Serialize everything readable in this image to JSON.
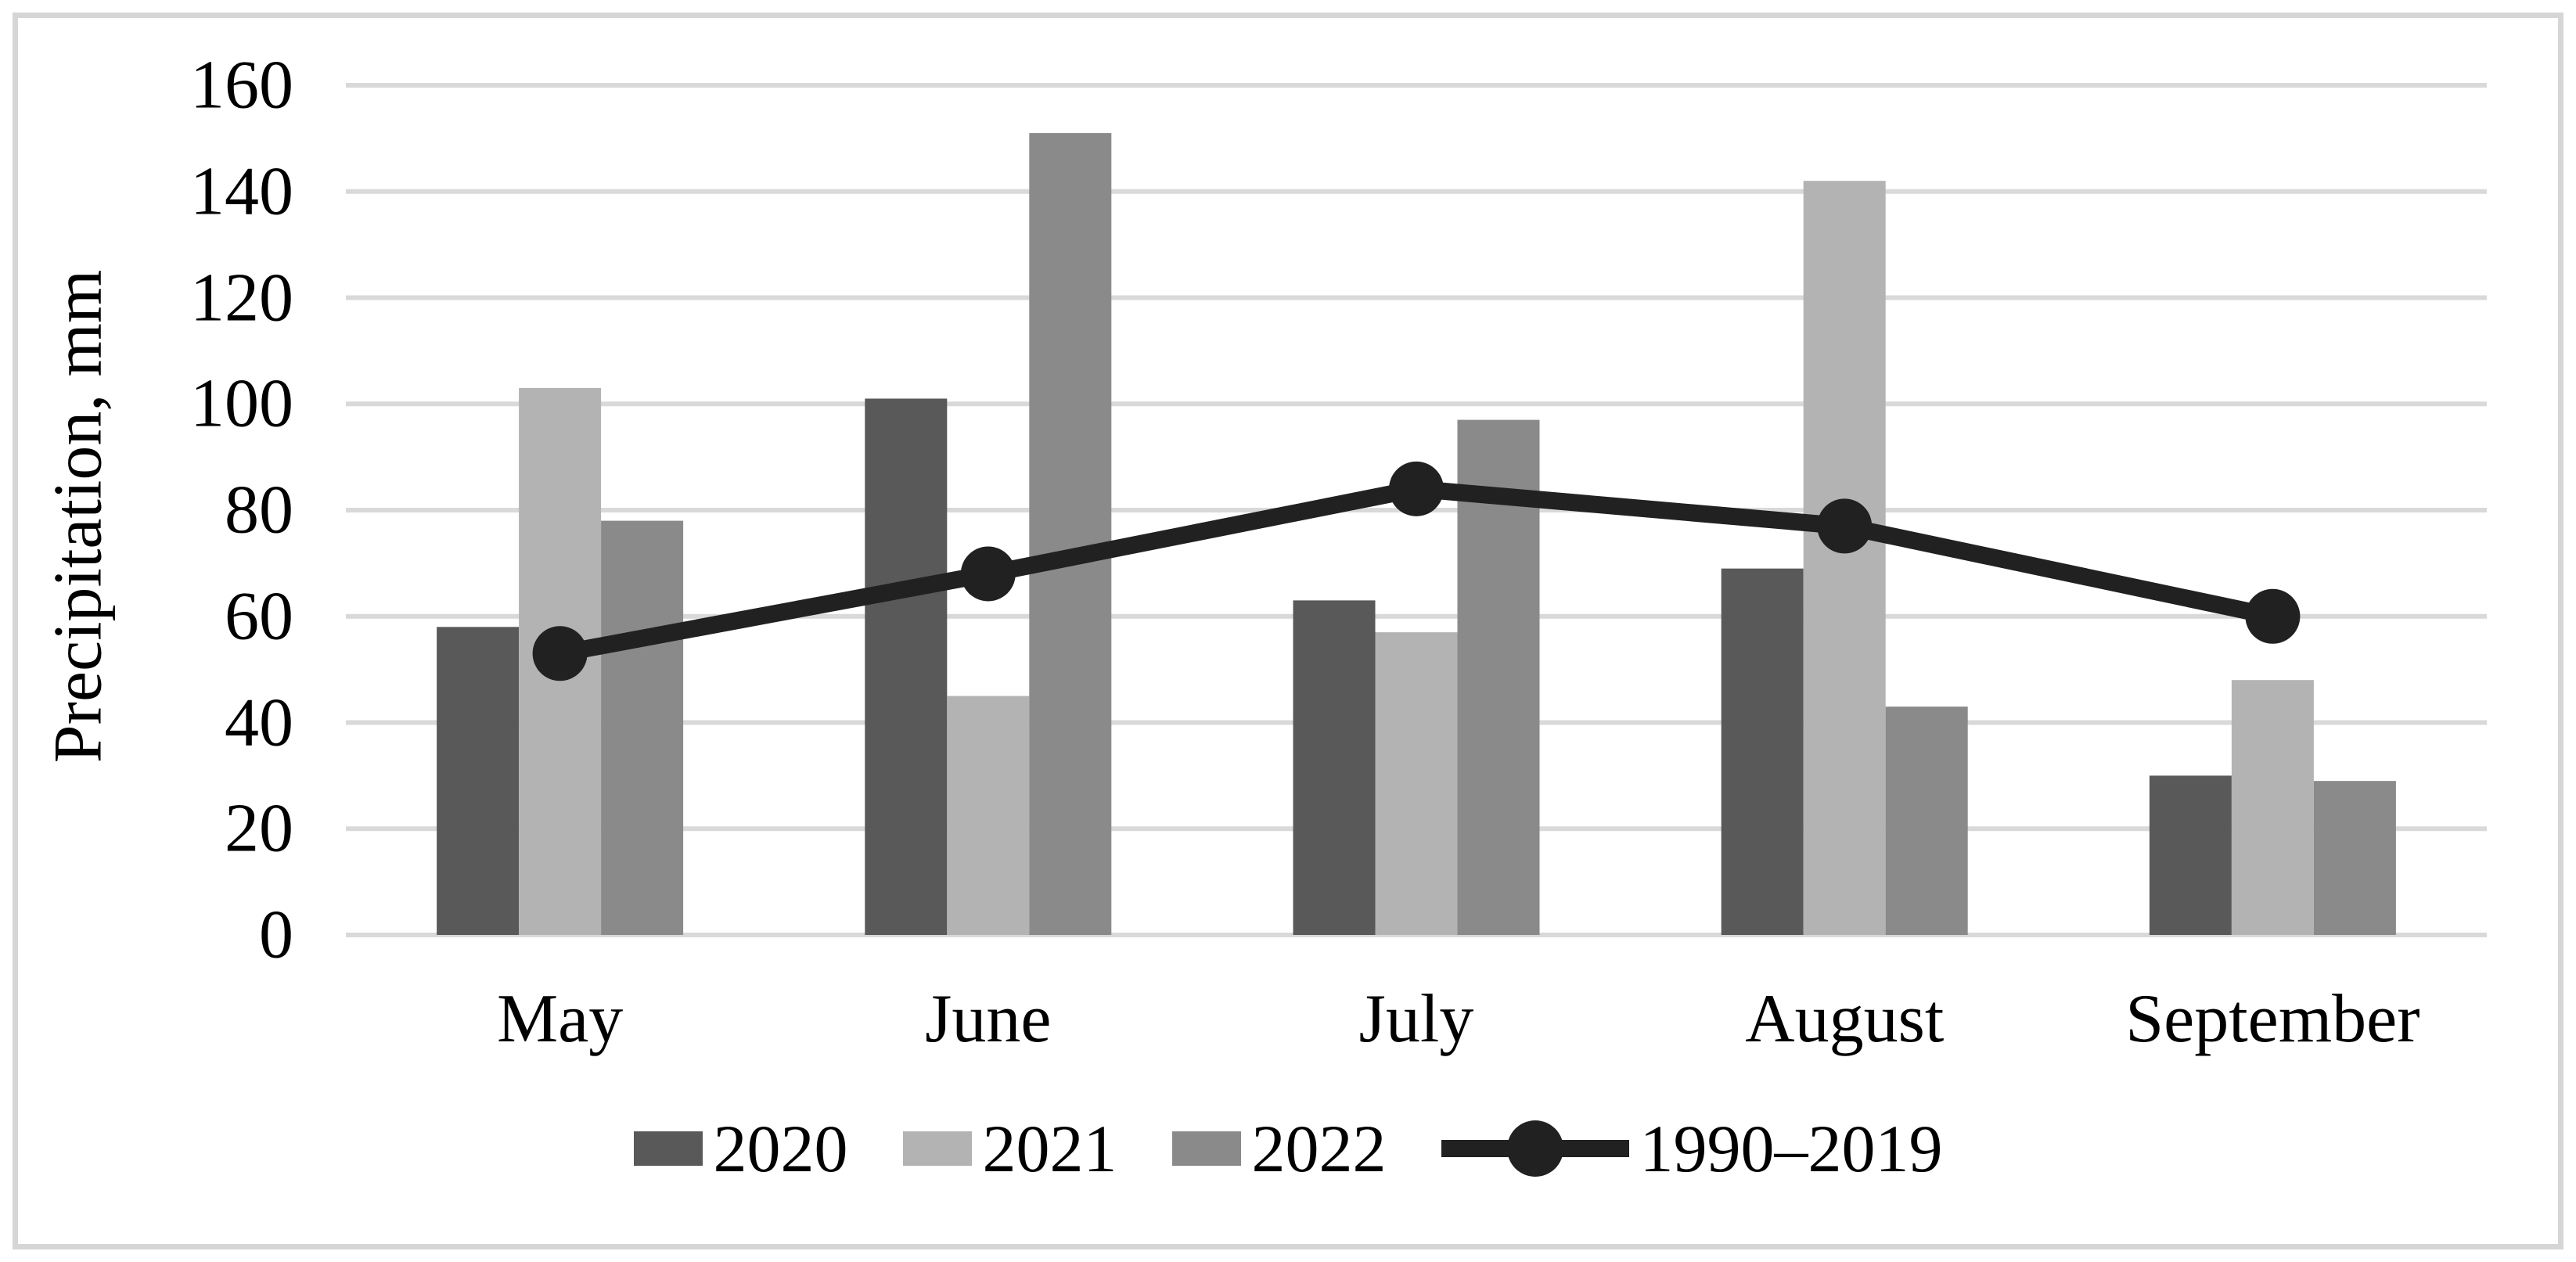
{
  "chart_data": {
    "type": "bar+line",
    "title": "",
    "ylabel": "Precipitation, mm",
    "xlabel": "",
    "ylim": [
      0,
      160
    ],
    "ystep": 20,
    "yticks": [
      0,
      20,
      40,
      60,
      80,
      100,
      120,
      140,
      160
    ],
    "grid": true,
    "legend_position": "bottom",
    "categories": [
      "May",
      "June",
      "July",
      "August",
      "September"
    ],
    "bar_series": [
      {
        "name": "2020",
        "color": "#595959",
        "values": [
          58,
          101,
          63,
          69,
          30
        ]
      },
      {
        "name": "2021",
        "color": "#b3b3b3",
        "values": [
          103,
          45,
          57,
          142,
          48
        ]
      },
      {
        "name": "2022",
        "color": "#8a8a8a",
        "values": [
          78,
          151,
          97,
          43,
          29
        ]
      }
    ],
    "line_series": {
      "name": "1990–2019",
      "color": "#212121",
      "values": [
        53,
        68,
        84,
        77,
        60
      ]
    },
    "colors": {
      "gridline": "#d9d9d9",
      "frame_border": "#d6d6d6",
      "background": "#ffffff",
      "text": "#000000"
    }
  }
}
